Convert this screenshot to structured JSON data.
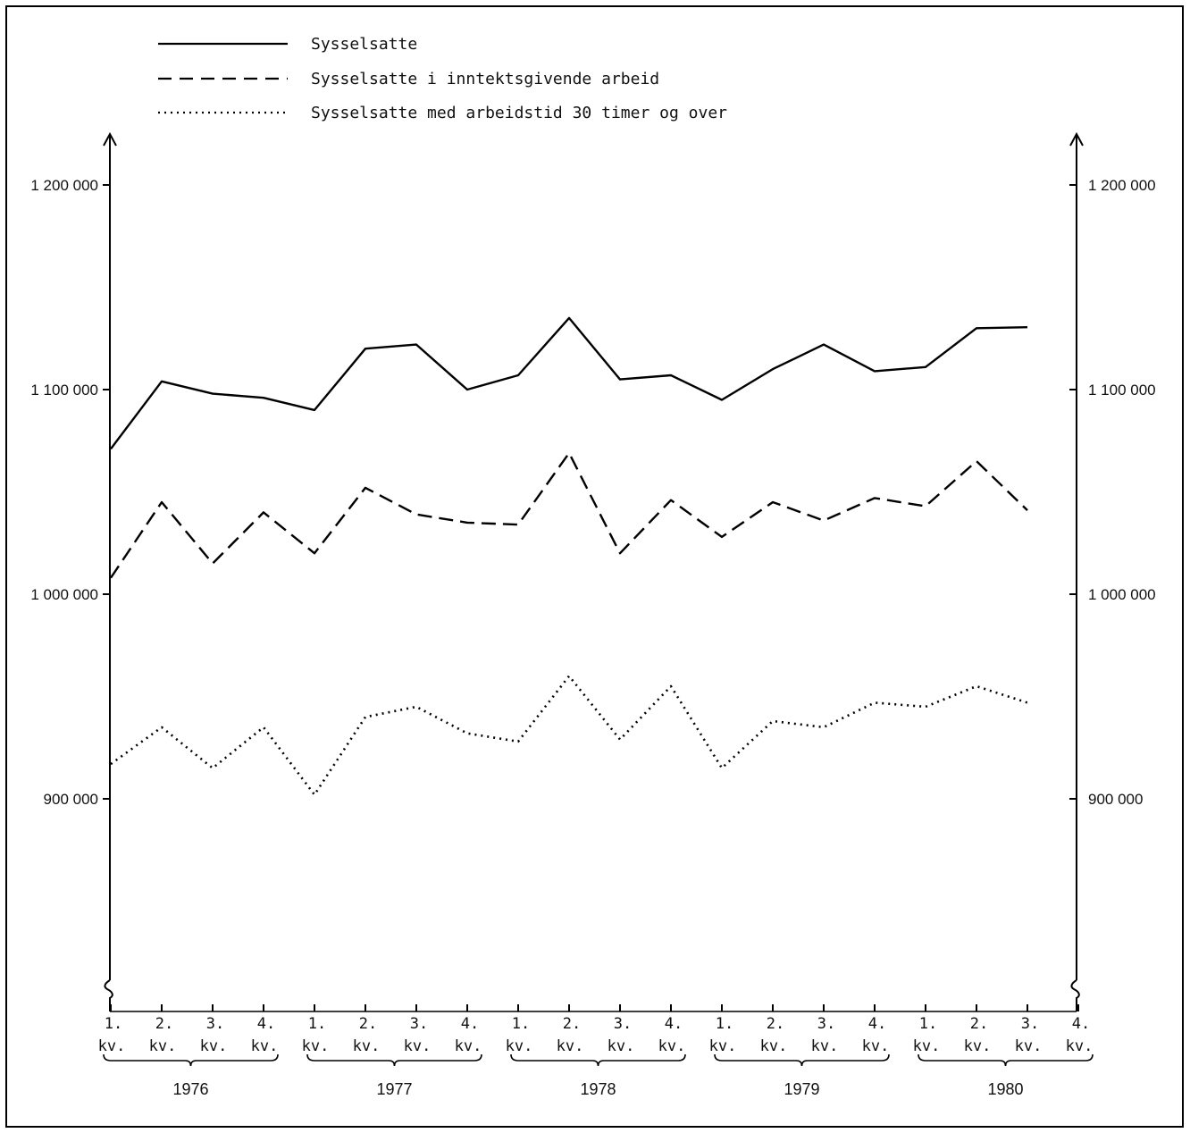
{
  "chart_data": {
    "type": "line",
    "legend_position": "top-left",
    "grid": false,
    "ylim": [
      820000,
      1210000
    ],
    "y_ticks": [
      900000,
      1000000,
      1100000,
      1200000
    ],
    "y_tick_labels": [
      "900 000",
      "1 000 000",
      "1 100 000",
      "1 200 000"
    ],
    "quarter_labels": [
      "1.",
      "2.",
      "3.",
      "4.",
      "1.",
      "2.",
      "3.",
      "4.",
      "1.",
      "2.",
      "3.",
      "4.",
      "1.",
      "2.",
      "3.",
      "4.",
      "1.",
      "2.",
      "3.",
      "4."
    ],
    "quarter_unit": "kv.",
    "years": [
      "1976",
      "1977",
      "1978",
      "1979",
      "1980"
    ],
    "series": [
      {
        "name": "Sysselsatte",
        "style": "solid",
        "values": [
          1071000,
          1104000,
          1098000,
          1096000,
          1090000,
          1120000,
          1122000,
          1100000,
          1107000,
          1135000,
          1105000,
          1107000,
          1095000,
          1110000,
          1122000,
          1109000,
          1111000,
          1130000,
          1130500
        ]
      },
      {
        "name": "Sysselsatte i inntektsgivende arbeid",
        "style": "dashed",
        "values": [
          1008000,
          1045000,
          1015000,
          1040000,
          1020000,
          1052000,
          1039000,
          1035000,
          1034000,
          1069000,
          1020000,
          1046000,
          1028000,
          1045000,
          1036000,
          1047000,
          1043000,
          1065000,
          1041000
        ]
      },
      {
        "name": "Sysselsatte med arbeidstid 30 timer og over",
        "style": "dotted",
        "values": [
          917000,
          935000,
          915000,
          935000,
          902000,
          940000,
          945000,
          932000,
          928000,
          960000,
          929000,
          955000,
          915000,
          938000,
          935000,
          947000,
          945000,
          955000,
          947000
        ]
      }
    ]
  }
}
